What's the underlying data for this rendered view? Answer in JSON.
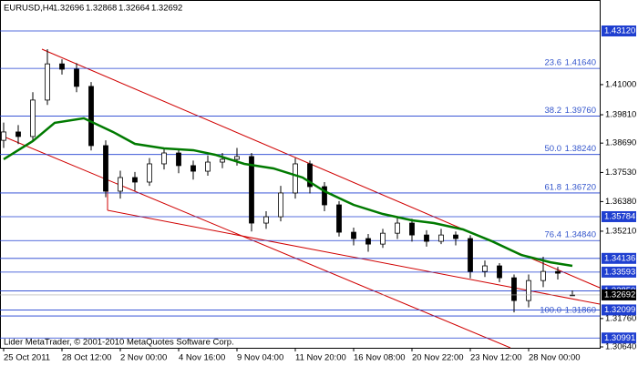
{
  "chart_data": {
    "type": "candlestick",
    "symbol": "EURUSD,H4",
    "quote": [
      "1.32696",
      "1.32868",
      "1.32664",
      "1.32692"
    ],
    "footer": "Lider MetaTrader, © 2001-2010 MetaQuotes Software Corp.",
    "xlim": [
      -1,
      163.5
    ],
    "xticks": [
      {
        "value": 0,
        "label": "25 Oct 2011"
      },
      {
        "value": 16,
        "label": "28 Oct 12:00"
      },
      {
        "value": 32,
        "label": "2 Nov 00:00"
      },
      {
        "value": 48,
        "label": "4 Nov 16:00"
      },
      {
        "value": 64,
        "label": "9 Nov 04:00"
      },
      {
        "value": 80,
        "label": "11 Nov 20:00"
      },
      {
        "value": 96,
        "label": "16 Nov 08:00"
      },
      {
        "value": 112,
        "label": "20 Nov 22:00"
      },
      {
        "value": 128,
        "label": "23 Nov 12:00"
      },
      {
        "value": 144,
        "label": "28 Nov 00:00"
      }
    ],
    "ylim": [
      1.30604,
      1.44343
    ],
    "yticks": [
      {
        "value": 1.41,
        "label": "1.41000"
      },
      {
        "value": 1.3981,
        "label": "1.39810"
      },
      {
        "value": 1.3869,
        "label": "1.38690"
      },
      {
        "value": 1.3753,
        "label": "1.37530"
      },
      {
        "value": 1.3638,
        "label": "1.36380"
      },
      {
        "value": 1.3521,
        "label": "1.35210"
      },
      {
        "value": 1.3176,
        "label": "1.31760"
      },
      {
        "value": 1.3064,
        "label": "1.30640"
      }
    ],
    "candles": {
      "x": [
        0,
        4,
        8,
        12,
        16,
        20,
        24,
        28,
        32,
        36,
        40,
        44,
        48,
        52,
        56,
        60,
        64,
        68,
        72,
        76,
        80,
        84,
        88,
        92,
        96,
        100,
        104,
        108,
        112,
        116,
        120,
        124,
        128,
        132,
        136,
        140,
        144,
        148,
        152,
        156
      ],
      "open": [
        1.388,
        1.3913,
        1.3895,
        1.4039,
        1.4182,
        1.4161,
        1.4093,
        1.3859,
        1.3679,
        1.3733,
        1.3715,
        1.3787,
        1.383,
        1.378,
        1.3758,
        1.3794,
        1.3805,
        1.3816,
        1.3553,
        1.3578,
        1.3672,
        1.3787,
        1.3697,
        1.3625,
        1.3517,
        1.3492,
        1.347,
        1.3513,
        1.3553,
        1.3506,
        1.3481,
        1.3506,
        1.3492,
        1.3362,
        1.3384,
        1.3337,
        1.3247,
        1.3326,
        1.3362,
        1.32696
      ],
      "high": [
        1.395,
        1.394,
        1.407,
        1.424,
        1.42,
        1.4185,
        1.411,
        1.388,
        1.376,
        1.3755,
        1.381,
        1.385,
        1.3845,
        1.38,
        1.382,
        1.383,
        1.385,
        1.383,
        1.36,
        1.37,
        1.381,
        1.38,
        1.3715,
        1.364,
        1.3535,
        1.351,
        1.353,
        1.358,
        1.357,
        1.3525,
        1.353,
        1.352,
        1.3505,
        1.3405,
        1.3395,
        1.335,
        1.335,
        1.342,
        1.338,
        1.32868
      ],
      "low": [
        1.385,
        1.3865,
        1.388,
        1.402,
        1.414,
        1.407,
        1.384,
        1.3655,
        1.365,
        1.368,
        1.37,
        1.3765,
        1.375,
        1.3725,
        1.374,
        1.377,
        1.378,
        1.352,
        1.353,
        1.356,
        1.365,
        1.367,
        1.36,
        1.35,
        1.3465,
        1.344,
        1.3455,
        1.349,
        1.348,
        1.346,
        1.347,
        1.3465,
        1.3335,
        1.334,
        1.332,
        1.32,
        1.322,
        1.33,
        1.333,
        1.32664
      ],
      "close": [
        1.3913,
        1.3895,
        1.4039,
        1.4182,
        1.4161,
        1.4093,
        1.3859,
        1.3679,
        1.3733,
        1.3715,
        1.3787,
        1.383,
        1.378,
        1.3758,
        1.3794,
        1.3805,
        1.3816,
        1.3553,
        1.3578,
        1.3672,
        1.3787,
        1.3697,
        1.3625,
        1.3517,
        1.3492,
        1.347,
        1.3513,
        1.3553,
        1.3506,
        1.3481,
        1.3506,
        1.3492,
        1.3362,
        1.3384,
        1.3337,
        1.3247,
        1.3326,
        1.3362,
        1.3355,
        1.32692
      ]
    },
    "ma": {
      "color": "#007a00",
      "x": [
        0,
        8,
        14,
        22,
        30,
        36,
        44,
        52,
        58,
        66,
        74,
        82,
        88,
        96,
        104,
        112,
        118,
        126,
        134,
        142,
        150,
        156
      ],
      "values": [
        1.3805,
        1.3877,
        1.3949,
        1.3967,
        1.3913,
        1.3866,
        1.3848,
        1.3841,
        1.3823,
        1.3787,
        1.3769,
        1.3733,
        1.3679,
        1.3625,
        1.3589,
        1.3564,
        1.3553,
        1.3528,
        1.3481,
        1.3427,
        1.3398,
        1.3384
      ]
    },
    "fib_levels": [
      {
        "label": "23.6",
        "price": {
          "value": 1.4164,
          "label": "1.41640"
        }
      },
      {
        "label": "38.2",
        "price": {
          "value": 1.3976,
          "label": "1.39760"
        }
      },
      {
        "label": "50.0",
        "price": {
          "value": 1.3824,
          "label": "1.38240"
        }
      },
      {
        "label": "61.8",
        "price": {
          "value": 1.3672,
          "label": "1.36720"
        }
      },
      {
        "label": "76.4",
        "price": {
          "value": 1.3484,
          "label": "1.34840"
        }
      },
      {
        "label": "100.0",
        "price": {
          "value": 1.3186,
          "label": "1.31860"
        }
      }
    ],
    "levels": [
      {
        "value": 1.4312,
        "label": "1.43120"
      },
      {
        "value": 1.35784,
        "label": "1.35784"
      },
      {
        "value": 1.34136,
        "label": "1.34136"
      },
      {
        "value": 1.33593,
        "label": "1.33593"
      },
      {
        "value": 1.3285,
        "label": "1.32850"
      },
      {
        "value": 1.32099,
        "label": "1.32099"
      },
      {
        "value": 1.30991,
        "label": "1.30991"
      }
    ],
    "level_color": "#1f3fd0",
    "last_price": {
      "value": 1.32692,
      "label": "1.32692"
    }
  }
}
